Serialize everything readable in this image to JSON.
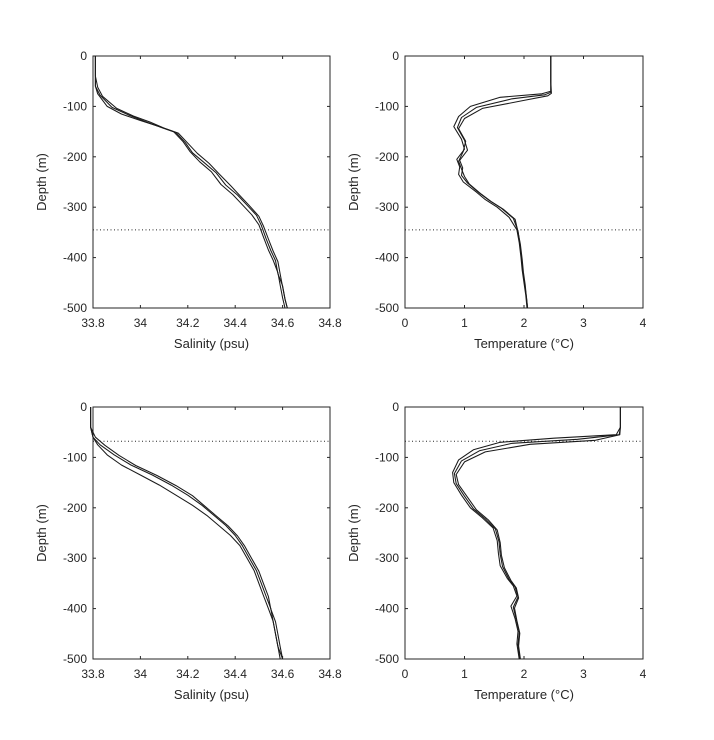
{
  "chart_data": [
    {
      "type": "line",
      "xlabel": "Salinity (psu)",
      "ylabel": "Depth (m)",
      "xlim": [
        33.8,
        34.8
      ],
      "ylim": [
        -500,
        0
      ],
      "xticks": [
        "33.8",
        "34",
        "34.2",
        "34.4",
        "34.6",
        "34.8"
      ],
      "yticks": [
        "0",
        "-100",
        "-200",
        "-300",
        "-400",
        "-500"
      ],
      "reference_depth": -345,
      "series": [
        {
          "x": [
            33.81,
            33.81,
            33.81,
            33.81,
            33.82,
            33.86,
            33.92,
            34.0,
            34.08,
            34.14,
            34.18,
            34.21,
            34.25,
            34.3,
            34.34,
            34.39,
            34.43,
            34.47,
            34.5,
            34.52,
            34.54,
            34.56,
            34.58,
            34.59,
            34.6,
            34.61
          ],
          "y": [
            0,
            -20,
            -40,
            -60,
            -75,
            -100,
            -115,
            -128,
            -140,
            -150,
            -170,
            -190,
            -210,
            -230,
            -255,
            -275,
            -295,
            -315,
            -335,
            -360,
            -385,
            -405,
            -430,
            -455,
            -480,
            -500
          ]
        },
        {
          "x": [
            33.81,
            33.81,
            33.81,
            33.81,
            33.83,
            33.88,
            33.95,
            34.02,
            34.09,
            34.15,
            34.19,
            34.22,
            34.27,
            34.32,
            34.36,
            34.41,
            34.45,
            34.49,
            34.51,
            34.53,
            34.55,
            34.57,
            34.58,
            34.6,
            34.61,
            34.62
          ],
          "y": [
            0,
            -20,
            -40,
            -60,
            -78,
            -102,
            -117,
            -130,
            -142,
            -152,
            -172,
            -192,
            -212,
            -232,
            -256,
            -276,
            -296,
            -316,
            -336,
            -362,
            -386,
            -406,
            -432,
            -456,
            -482,
            -500
          ]
        },
        {
          "x": [
            33.81,
            33.81,
            33.81,
            33.82,
            33.84,
            33.9,
            33.97,
            34.04,
            34.1,
            34.16,
            34.2,
            34.24,
            34.29,
            34.33,
            34.38,
            34.42,
            34.46,
            34.5,
            34.52,
            34.54,
            34.56,
            34.58,
            34.59,
            34.6,
            34.61,
            34.62
          ],
          "y": [
            0,
            -20,
            -40,
            -62,
            -80,
            -104,
            -119,
            -131,
            -143,
            -153,
            -173,
            -193,
            -213,
            -233,
            -257,
            -277,
            -297,
            -318,
            -338,
            -363,
            -387,
            -408,
            -433,
            -458,
            -483,
            -500
          ]
        }
      ]
    },
    {
      "type": "line",
      "xlabel": "Temperature (°C)",
      "ylabel": "Depth (m)",
      "xlim": [
        0,
        4
      ],
      "ylim": [
        -500,
        0
      ],
      "xticks": [
        "0",
        "1",
        "2",
        "3",
        "4"
      ],
      "yticks": [
        "0",
        "-100",
        "-200",
        "-300",
        "-400",
        "-500"
      ],
      "reference_depth": -345,
      "series": [
        {
          "x": [
            2.45,
            2.45,
            2.45,
            2.45,
            2.3,
            1.6,
            1.1,
            0.9,
            0.82,
            0.95,
            1.0,
            0.87,
            0.92,
            0.9,
            0.98,
            1.2,
            1.35,
            1.55,
            1.75,
            1.88,
            1.92,
            1.95,
            1.97,
            2.0,
            2.03,
            2.05
          ],
          "y": [
            0,
            -25,
            -50,
            -70,
            -75,
            -82,
            -100,
            -120,
            -140,
            -165,
            -185,
            -205,
            -220,
            -235,
            -250,
            -270,
            -285,
            -300,
            -320,
            -345,
            -370,
            -400,
            -425,
            -450,
            -475,
            -500
          ]
        },
        {
          "x": [
            2.45,
            2.45,
            2.45,
            2.45,
            2.35,
            1.8,
            1.2,
            0.95,
            0.88,
            1.0,
            1.05,
            0.92,
            0.97,
            0.95,
            1.05,
            1.25,
            1.42,
            1.62,
            1.82,
            1.9,
            1.93,
            1.96,
            1.98,
            2.01,
            2.04,
            2.06
          ],
          "y": [
            0,
            -25,
            -50,
            -72,
            -77,
            -85,
            -102,
            -122,
            -142,
            -167,
            -187,
            -207,
            -222,
            -237,
            -252,
            -272,
            -287,
            -302,
            -322,
            -347,
            -372,
            -402,
            -427,
            -452,
            -477,
            -500
          ]
        },
        {
          "x": [
            2.45,
            2.45,
            2.45,
            2.46,
            2.4,
            2.0,
            1.3,
            1.0,
            0.9,
            1.02,
            0.98,
            0.9,
            0.95,
            1.0,
            1.08,
            1.28,
            1.45,
            1.65,
            1.85,
            1.9,
            1.94,
            1.97,
            1.99,
            2.02,
            2.04,
            2.06
          ],
          "y": [
            0,
            -25,
            -50,
            -74,
            -79,
            -88,
            -104,
            -124,
            -144,
            -169,
            -189,
            -209,
            -224,
            -239,
            -254,
            -274,
            -289,
            -304,
            -324,
            -349,
            -374,
            -404,
            -429,
            -454,
            -479,
            -500
          ]
        }
      ]
    },
    {
      "type": "line",
      "xlabel": "Salinity (psu)",
      "ylabel": "Depth (m)",
      "xlim": [
        33.8,
        34.8
      ],
      "ylim": [
        -500,
        0
      ],
      "xticks": [
        "33.8",
        "34",
        "34.2",
        "34.4",
        "34.6",
        "34.8"
      ],
      "yticks": [
        "0",
        "-100",
        "-200",
        "-300",
        "-400",
        "-500"
      ],
      "reference_depth": -68,
      "series": [
        {
          "x": [
            33.79,
            33.79,
            33.79,
            33.8,
            33.82,
            33.86,
            33.92,
            34.0,
            34.08,
            34.15,
            34.22,
            34.28,
            34.33,
            34.38,
            34.42,
            34.45,
            34.48,
            34.5,
            34.52,
            34.54,
            34.56,
            34.57,
            34.58,
            34.59
          ],
          "y": [
            0,
            -20,
            -40,
            -60,
            -75,
            -95,
            -115,
            -135,
            -155,
            -175,
            -195,
            -215,
            -235,
            -255,
            -275,
            -300,
            -325,
            -350,
            -375,
            -400,
            -425,
            -450,
            -475,
            -500
          ]
        },
        {
          "x": [
            33.79,
            33.79,
            33.79,
            33.8,
            33.83,
            33.89,
            33.96,
            34.05,
            34.13,
            34.2,
            34.26,
            34.31,
            34.36,
            34.4,
            34.43,
            34.46,
            34.49,
            34.51,
            34.53,
            34.55,
            34.56,
            34.57,
            34.58,
            34.6
          ],
          "y": [
            0,
            -20,
            -40,
            -60,
            -75,
            -95,
            -115,
            -135,
            -155,
            -175,
            -195,
            -215,
            -235,
            -255,
            -275,
            -300,
            -325,
            -350,
            -375,
            -400,
            -425,
            -450,
            -475,
            -500
          ]
        },
        {
          "x": [
            33.79,
            33.79,
            33.79,
            33.81,
            33.85,
            33.91,
            33.98,
            34.07,
            34.15,
            34.22,
            34.27,
            34.32,
            34.37,
            34.41,
            34.44,
            34.47,
            34.5,
            34.52,
            34.54,
            34.55,
            34.57,
            34.58,
            34.59,
            34.6
          ],
          "y": [
            0,
            -20,
            -40,
            -60,
            -76,
            -96,
            -116,
            -136,
            -156,
            -176,
            -196,
            -216,
            -236,
            -256,
            -276,
            -301,
            -326,
            -351,
            -376,
            -401,
            -426,
            -451,
            -476,
            -500
          ]
        }
      ]
    },
    {
      "type": "line",
      "xlabel": "Temperature (°C)",
      "ylabel": "Depth (m)",
      "xlim": [
        0,
        4
      ],
      "ylim": [
        -500,
        0
      ],
      "xticks": [
        "0",
        "1",
        "2",
        "3",
        "4"
      ],
      "yticks": [
        "0",
        "-100",
        "-200",
        "-300",
        "-400",
        "-500"
      ],
      "reference_depth": -68,
      "series": [
        {
          "x": [
            3.62,
            3.62,
            3.62,
            3.55,
            2.5,
            1.6,
            1.15,
            0.9,
            0.8,
            0.82,
            0.95,
            1.1,
            1.3,
            1.48,
            1.55,
            1.57,
            1.6,
            1.72,
            1.82,
            1.88,
            1.78,
            1.85,
            1.9,
            1.88,
            1.92
          ],
          "y": [
            0,
            -20,
            -40,
            -55,
            -62,
            -70,
            -85,
            -105,
            -130,
            -150,
            -175,
            -200,
            -220,
            -240,
            -265,
            -290,
            -315,
            -340,
            -355,
            -375,
            -395,
            -420,
            -445,
            -470,
            -500
          ]
        },
        {
          "x": [
            3.62,
            3.62,
            3.62,
            3.6,
            2.9,
            1.8,
            1.25,
            0.95,
            0.83,
            0.86,
            1.0,
            1.15,
            1.35,
            1.52,
            1.58,
            1.6,
            1.64,
            1.75,
            1.85,
            1.9,
            1.82,
            1.87,
            1.92,
            1.9,
            1.93
          ],
          "y": [
            0,
            -20,
            -40,
            -55,
            -64,
            -72,
            -87,
            -107,
            -132,
            -152,
            -177,
            -202,
            -222,
            -242,
            -267,
            -292,
            -317,
            -342,
            -357,
            -377,
            -397,
            -422,
            -447,
            -472,
            -500
          ]
        },
        {
          "x": [
            3.62,
            3.62,
            3.62,
            3.61,
            3.2,
            2.1,
            1.35,
            1.0,
            0.86,
            0.9,
            1.05,
            1.2,
            1.4,
            1.55,
            1.6,
            1.62,
            1.67,
            1.78,
            1.87,
            1.91,
            1.84,
            1.88,
            1.93,
            1.91,
            1.94
          ],
          "y": [
            0,
            -20,
            -40,
            -55,
            -66,
            -74,
            -89,
            -109,
            -134,
            -154,
            -179,
            -204,
            -224,
            -244,
            -269,
            -294,
            -319,
            -344,
            -359,
            -379,
            -399,
            -424,
            -449,
            -474,
            -500
          ]
        }
      ]
    }
  ]
}
